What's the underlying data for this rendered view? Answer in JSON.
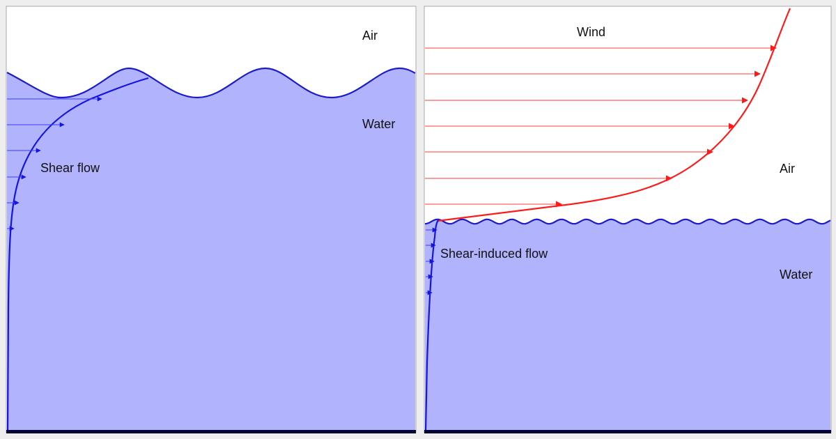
{
  "left_panel": {
    "air_label": "Air",
    "water_label": "Water",
    "flow_label": "Shear flow"
  },
  "right_panel": {
    "wind_label": "Wind",
    "air_label": "Air",
    "water_label": "Water",
    "flow_label": "Shear-induced flow"
  },
  "colors": {
    "water": "#b1b3fc",
    "water_flow": "#1515e0",
    "wind_flow": "#ff1a1a"
  }
}
